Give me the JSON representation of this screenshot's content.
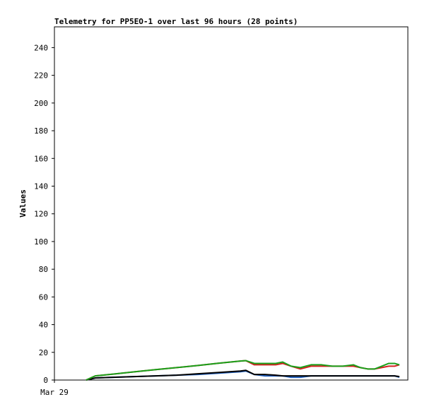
{
  "chart_data": {
    "type": "line",
    "title": "Telemetry for PP5EO-1 over last 96 hours (28 points)",
    "y_label": "Values",
    "x": [
      8.6,
      11.1,
      15.9,
      21.7,
      27.5,
      33.2,
      39.0,
      44.7,
      50.5,
      52.0,
      54.3,
      57.2,
      60.1,
      62.0,
      64.3,
      66.8,
      69.7,
      72.6,
      75.5,
      78.3,
      81.2,
      83.1,
      85.1,
      87.0,
      88.9,
      90.8,
      92.4,
      93.7
    ],
    "xlim": [
      0,
      96
    ],
    "xticks": [
      {
        "value": 0,
        "label": "Mar 29"
      }
    ],
    "ylim": [
      0,
      255
    ],
    "yticks": [
      0,
      20,
      40,
      60,
      80,
      100,
      120,
      140,
      160,
      180,
      200,
      220,
      240
    ],
    "grid": false,
    "series": [
      {
        "color": "#1f5fbf",
        "values": [
          0,
          1.5,
          2,
          2.5,
          3,
          3.5,
          4,
          5,
          6,
          6.5,
          4,
          3,
          3,
          3,
          2,
          2,
          3,
          3,
          3,
          3,
          3,
          3,
          3,
          3,
          3,
          3,
          3,
          2
        ]
      },
      {
        "color": "#000000",
        "values": [
          0,
          1.5,
          2,
          2.5,
          3,
          3.5,
          4.5,
          5.5,
          6.5,
          7,
          4,
          4,
          3.5,
          3,
          3,
          3,
          3,
          3,
          3,
          3,
          3,
          3,
          3,
          3,
          3,
          3,
          3,
          2.5
        ]
      },
      {
        "color": "#d42020",
        "values": [
          0,
          3,
          4.3,
          5.9,
          7.5,
          9,
          10.5,
          12.2,
          13.7,
          14,
          11,
          11,
          11,
          12,
          10,
          8,
          10,
          10,
          10,
          10,
          10,
          9,
          8,
          8,
          9,
          10,
          10,
          11
        ]
      },
      {
        "color": "#1aa01a",
        "values": [
          0,
          3,
          4.3,
          5.9,
          7.5,
          9,
          10.5,
          12.2,
          13.7,
          14,
          12,
          12,
          12,
          13,
          10,
          9,
          11,
          11,
          10,
          10,
          11,
          9,
          8,
          8,
          10,
          12,
          12,
          11
        ]
      }
    ]
  }
}
